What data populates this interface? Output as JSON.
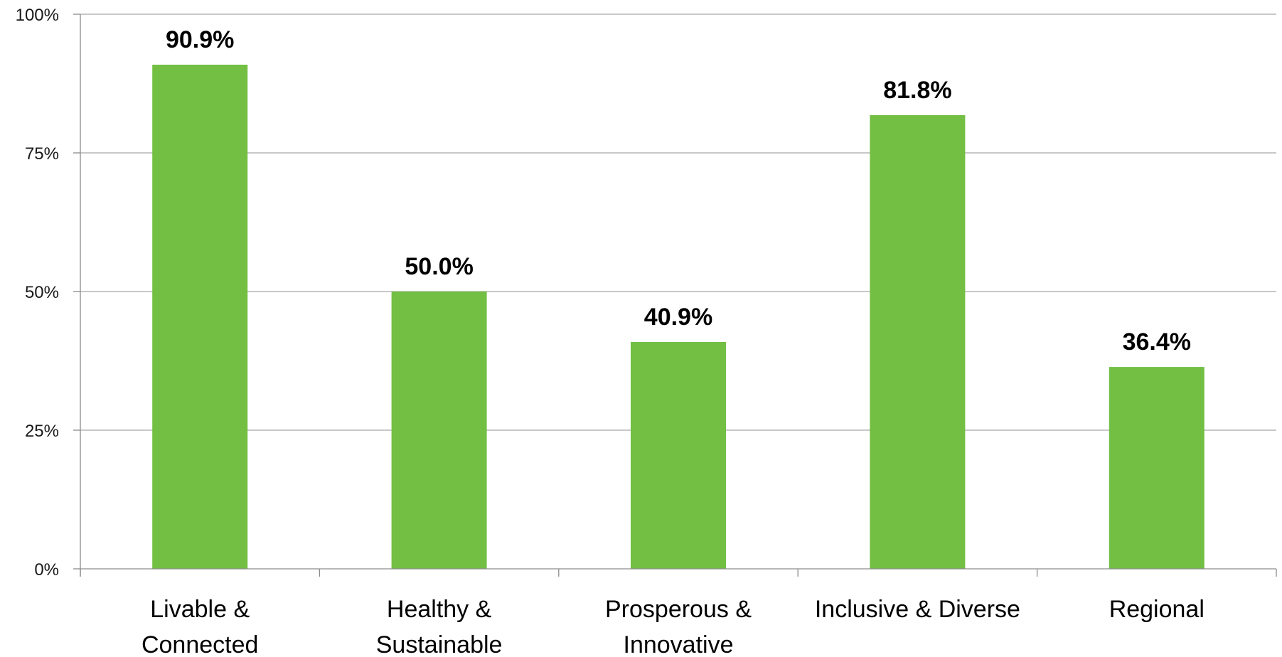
{
  "chart_data": {
    "type": "bar",
    "title": "",
    "xlabel": "",
    "ylabel": "",
    "categories": [
      [
        "Livable &",
        "Connected"
      ],
      [
        "Healthy &",
        "Sustainable"
      ],
      [
        "Prosperous &",
        "Innovative"
      ],
      [
        "Inclusive & Diverse"
      ],
      [
        "Regional"
      ]
    ],
    "values": [
      90.9,
      50.0,
      40.9,
      81.8,
      36.4
    ],
    "data_labels": [
      "90.9%",
      "50.0%",
      "40.9%",
      "81.8%",
      "36.4%"
    ],
    "ylim": [
      0,
      100
    ],
    "y_ticks": [
      0,
      25,
      50,
      75,
      100
    ],
    "y_tick_labels": [
      "0%",
      "25%",
      "50%",
      "75%",
      "100%"
    ],
    "grid": true,
    "legend": "none",
    "colors": {
      "bar": "#72bf44",
      "grid": "#a6a6a6",
      "axis": "#8c8c8c"
    }
  }
}
